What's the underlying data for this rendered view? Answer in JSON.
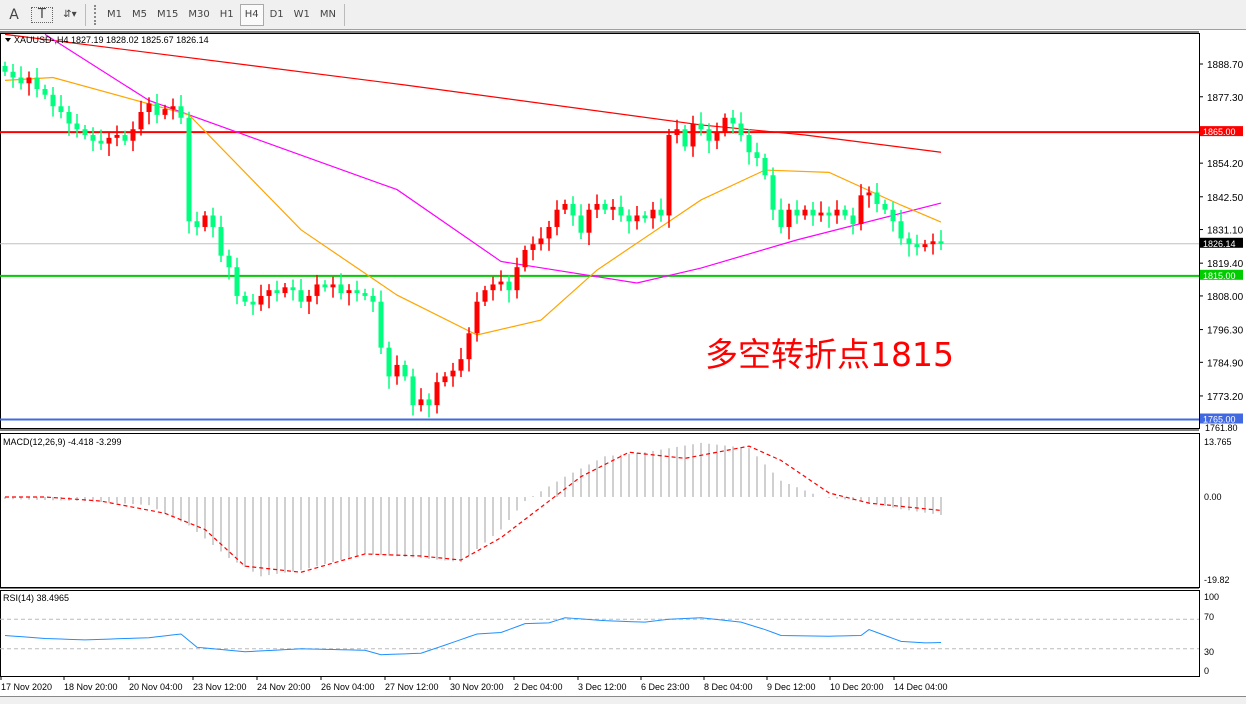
{
  "toolbar": {
    "tools": [
      {
        "name": "text-tool",
        "label": "A"
      },
      {
        "name": "text-label-tool",
        "label": "T"
      },
      {
        "name": "arrows-tool",
        "label": "⇵▾"
      }
    ],
    "timeframes": [
      "M1",
      "M5",
      "M15",
      "M30",
      "H1",
      "H4",
      "D1",
      "W1",
      "MN"
    ],
    "active_timeframe": "H4"
  },
  "chart": {
    "header": "XAUUSD-,H4  1827.19 1828.02 1825.67 1826.14",
    "annotation": "多空转折点1815",
    "colors": {
      "bull": "#ff0000",
      "bear": "#00ff7f",
      "ma_fast": "#ffa500",
      "ma_mid": "#ff00ff",
      "ma_slow": "#ff0000",
      "support": "#00cc00",
      "resistance": "#ff0000",
      "low_line": "#4169e1",
      "bid": "#c0c0c0",
      "macd_hist": "#c0c0c0",
      "macd_signal": "#ff0000",
      "rsi": "#1e90ff"
    },
    "price_axis": {
      "ticks": [
        "1888.70",
        "1877.30",
        "1854.20",
        "1842.50",
        "1831.10",
        "1819.40",
        "1808.00",
        "1796.30",
        "1784.90",
        "1773.20",
        "1761.80"
      ],
      "min": 1761.8,
      "max": 1888.7
    },
    "levels": [
      {
        "value": 1865.0,
        "label": "1865.00",
        "role": "resistance"
      },
      {
        "value": 1826.14,
        "label": "1826.14",
        "role": "bid"
      },
      {
        "value": 1815.0,
        "label": "1815.00",
        "role": "support"
      },
      {
        "value": 1765.0,
        "label": "1765.00",
        "role": "low_line"
      }
    ],
    "time_axis": [
      "17 Nov 2020",
      "18 Nov 20:00",
      "20 Nov 04:00",
      "23 Nov 12:00",
      "24 Nov 20:00",
      "26 Nov 04:00",
      "27 Nov 12:00",
      "30 Nov 20:00",
      "2 Dec 04:00",
      "3 Dec 12:00",
      "6 Dec 23:00",
      "8 Dec 04:00",
      "9 Dec 12:00",
      "10 Dec 20:00",
      "14 Dec 04:00"
    ]
  },
  "chart_data": {
    "type": "candlestick",
    "first_open": 1888,
    "closes": [
      1886,
      1884,
      1882,
      1884,
      1880,
      1878,
      1874,
      1872,
      1868,
      1866,
      1864,
      1862,
      1861,
      1863,
      1864,
      1862,
      1866,
      1872,
      1875,
      1871,
      1873,
      1874,
      1870,
      1834,
      1832,
      1836,
      1832,
      1822,
      1818,
      1808,
      1806,
      1805,
      1808,
      1810,
      1809,
      1811,
      1810,
      1806,
      1808,
      1812,
      1811,
      1812,
      1809,
      1810,
      1809,
      1808,
      1806,
      1790,
      1780,
      1784,
      1780,
      1770,
      1772,
      1770,
      1778,
      1780,
      1782,
      1786,
      1795,
      1806,
      1810,
      1812,
      1813,
      1810,
      1818,
      1824,
      1826,
      1828,
      1832,
      1838,
      1840,
      1836,
      1830,
      1838,
      1840,
      1838,
      1839,
      1836,
      1834,
      1836,
      1835,
      1838,
      1836,
      1864,
      1866,
      1860,
      1868,
      1866,
      1862,
      1865,
      1870,
      1868,
      1864,
      1858,
      1856,
      1850,
      1838,
      1832,
      1838,
      1836,
      1838,
      1836,
      1837,
      1836,
      1838,
      1836,
      1833,
      1843,
      1844,
      1840,
      1838,
      1834,
      1828,
      1826,
      1825,
      1826,
      1827,
      1826.14
    ],
    "moving_averages": [
      {
        "role": "ma_slow",
        "points": [
          [
            0,
            1899
          ],
          [
            50,
            1881.4
          ],
          [
            87,
            1867.5
          ],
          [
            100,
            1864
          ],
          [
            117,
            1858
          ]
        ]
      },
      {
        "role": "ma_mid",
        "points": [
          [
            5,
            1899
          ],
          [
            18,
            1876
          ],
          [
            49,
            1845
          ],
          [
            62,
            1820
          ],
          [
            79,
            1812.5
          ],
          [
            87,
            1817.7
          ],
          [
            99,
            1827.5
          ],
          [
            117,
            1840.3
          ]
        ]
      },
      {
        "role": "ma_fast",
        "points": [
          [
            0,
            1883
          ],
          [
            6,
            1884
          ],
          [
            23,
            1871
          ],
          [
            37,
            1831
          ],
          [
            49,
            1808.3
          ],
          [
            59,
            1794.4
          ],
          [
            67,
            1799.6
          ],
          [
            74,
            1817
          ],
          [
            87,
            1841.4
          ],
          [
            95,
            1851.8
          ],
          [
            103,
            1851
          ],
          [
            112,
            1839.6
          ],
          [
            117,
            1833.7
          ]
        ]
      }
    ],
    "macd": {
      "label": "MACD(12,26,9) -4.418 -3.299",
      "axis": [
        "13.765",
        "0.00",
        "-19.82"
      ],
      "min": -19.82,
      "max": 13.765,
      "histogram": [
        [
          0,
          -0.5
        ],
        [
          10,
          -1
        ],
        [
          18,
          -2
        ],
        [
          23,
          -7
        ],
        [
          28,
          -15
        ],
        [
          32,
          -19.5
        ],
        [
          37,
          -18
        ],
        [
          45,
          -14
        ],
        [
          52,
          -15
        ],
        [
          57,
          -16
        ],
        [
          62,
          -8
        ],
        [
          65,
          -1
        ],
        [
          70,
          5
        ],
        [
          75,
          10
        ],
        [
          80,
          11
        ],
        [
          87,
          13.3
        ],
        [
          93,
          12
        ],
        [
          97,
          4
        ],
        [
          102,
          0
        ],
        [
          107,
          -1
        ],
        [
          112,
          -3
        ],
        [
          117,
          -4.418
        ]
      ],
      "signal": [
        [
          0,
          0
        ],
        [
          5,
          0
        ],
        [
          12,
          -1
        ],
        [
          20,
          -4
        ],
        [
          25,
          -8
        ],
        [
          30,
          -17
        ],
        [
          37,
          -18.5
        ],
        [
          45,
          -14
        ],
        [
          52,
          -14.5
        ],
        [
          57,
          -15.5
        ],
        [
          62,
          -10
        ],
        [
          66,
          -4
        ],
        [
          72,
          5
        ],
        [
          78,
          11
        ],
        [
          85,
          9.5
        ],
        [
          93,
          12.5
        ],
        [
          97,
          9
        ],
        [
          103,
          1
        ],
        [
          108,
          -1.5
        ],
        [
          117,
          -3.299
        ]
      ]
    },
    "rsi": {
      "label": "RSI(14) 38.4965",
      "axis": [
        "100",
        "70",
        "30",
        "0"
      ],
      "levels": [
        70,
        30
      ],
      "points": [
        [
          0,
          48
        ],
        [
          5,
          44
        ],
        [
          10,
          42
        ],
        [
          18,
          45
        ],
        [
          22,
          50
        ],
        [
          24,
          32
        ],
        [
          30,
          26
        ],
        [
          37,
          30
        ],
        [
          45,
          28
        ],
        [
          47,
          22
        ],
        [
          52,
          24
        ],
        [
          55,
          35
        ],
        [
          59,
          50
        ],
        [
          62,
          52
        ],
        [
          65,
          64
        ],
        [
          68,
          65
        ],
        [
          70,
          72
        ],
        [
          75,
          68
        ],
        [
          80,
          66
        ],
        [
          83,
          70
        ],
        [
          87,
          72
        ],
        [
          92,
          66
        ],
        [
          95,
          56
        ],
        [
          97,
          48
        ],
        [
          103,
          47
        ],
        [
          107,
          48
        ],
        [
          108,
          56
        ],
        [
          112,
          40
        ],
        [
          115,
          38
        ],
        [
          117,
          38.5
        ]
      ]
    }
  }
}
